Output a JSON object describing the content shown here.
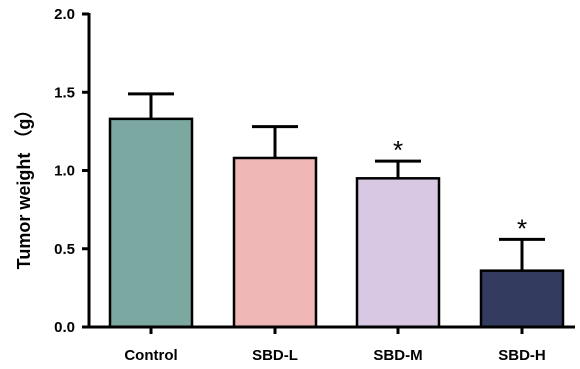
{
  "chart_data": {
    "type": "bar",
    "title": "",
    "xlabel": "",
    "ylabel": "Tumor weight （g）",
    "ylim": [
      0,
      2.0
    ],
    "yticks": [
      "0.0",
      "0.5",
      "1.0",
      "1.5",
      "2.0"
    ],
    "categories": [
      "Control",
      "SBD-L",
      "SBD-M",
      "SBD-H"
    ],
    "values": [
      1.33,
      1.08,
      0.95,
      0.36
    ],
    "error_upper": [
      0.16,
      0.2,
      0.11,
      0.2
    ],
    "significance": [
      "",
      "",
      "*",
      "*"
    ],
    "colors": [
      "#7ba8a1",
      "#efb8b6",
      "#d8c8e4",
      "#323a5e"
    ],
    "grid": false,
    "legend": "none"
  }
}
